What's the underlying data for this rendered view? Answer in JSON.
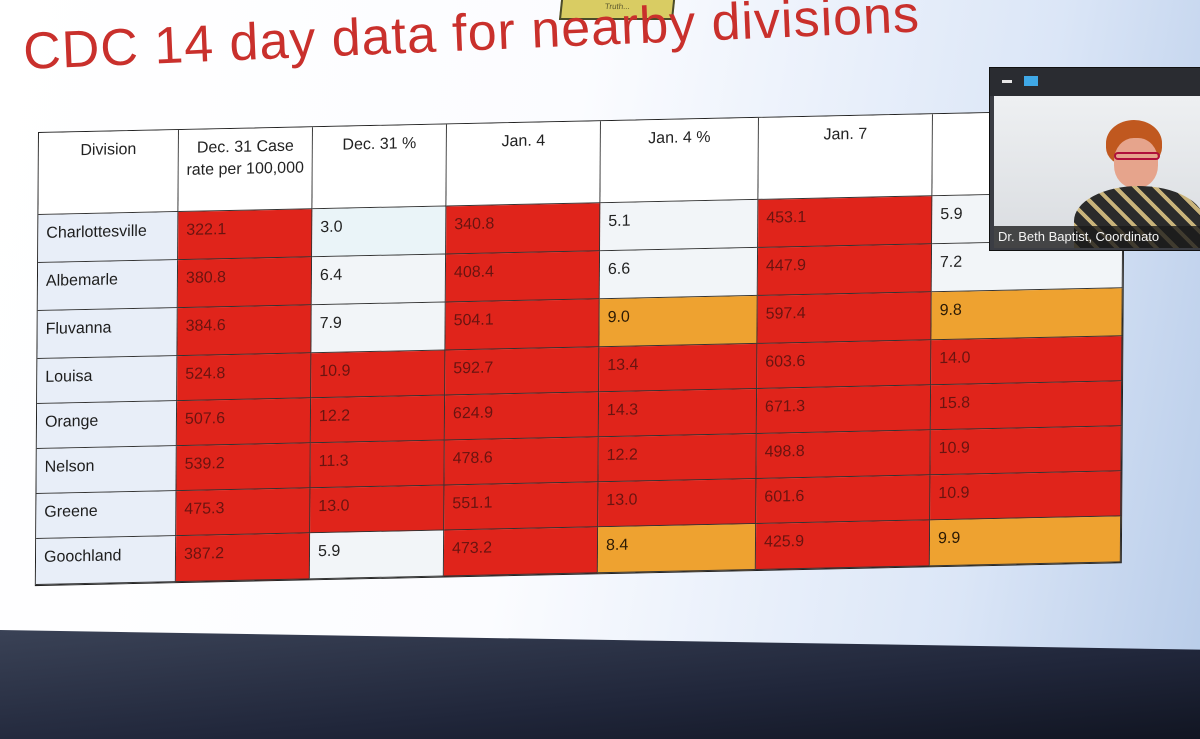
{
  "slide": {
    "title": "CDC 14 day data for nearby divisions",
    "banner_text": "Truth..."
  },
  "table": {
    "headers": [
      "Division",
      "Dec. 31 Case rate per 100,000",
      "Dec. 31 %",
      "Jan. 4",
      "Jan. 4 %",
      "Jan. 7",
      ""
    ],
    "rows": [
      {
        "division": "Charlottesville",
        "values": [
          "322.1",
          "3.0",
          "340.8",
          "5.1",
          "453.1",
          "5.9"
        ],
        "colors": [
          "red",
          "cyanwhite",
          "red",
          "white",
          "red",
          "white"
        ]
      },
      {
        "division": "Albemarle",
        "values": [
          "380.8",
          "6.4",
          "408.4",
          "6.6",
          "447.9",
          "7.2"
        ],
        "colors": [
          "red",
          "white",
          "red",
          "white",
          "red",
          "white"
        ]
      },
      {
        "division": "Fluvanna",
        "values": [
          "384.6",
          "7.9",
          "504.1",
          "9.0",
          "597.4",
          "9.8"
        ],
        "colors": [
          "red",
          "white",
          "red",
          "orange",
          "red",
          "orange"
        ]
      },
      {
        "division": "Louisa",
        "values": [
          "524.8",
          "10.9",
          "592.7",
          "13.4",
          "603.6",
          "14.0"
        ],
        "colors": [
          "red",
          "red",
          "red",
          "red",
          "red",
          "red"
        ]
      },
      {
        "division": "Orange",
        "values": [
          "507.6",
          "12.2",
          "624.9",
          "14.3",
          "671.3",
          "15.8"
        ],
        "colors": [
          "red",
          "red",
          "red",
          "red",
          "red",
          "red"
        ]
      },
      {
        "division": "Nelson",
        "values": [
          "539.2",
          "11.3",
          "478.6",
          "12.2",
          "498.8",
          "10.9"
        ],
        "colors": [
          "red",
          "red",
          "red",
          "red",
          "red",
          "red"
        ]
      },
      {
        "division": "Greene",
        "values": [
          "475.3",
          "13.0",
          "551.1",
          "13.0",
          "601.6",
          "10.9"
        ],
        "colors": [
          "red",
          "red",
          "red",
          "red",
          "red",
          "red"
        ]
      },
      {
        "division": "Goochland",
        "values": [
          "387.2",
          "5.9",
          "473.2",
          "8.4",
          "425.9",
          "9.9"
        ],
        "colors": [
          "red",
          "white",
          "red",
          "orange",
          "red",
          "orange"
        ]
      }
    ]
  },
  "video": {
    "participant_name": "Dr. Beth Baptist, Coordinato"
  },
  "colors": {
    "red": "#e0241b",
    "orange": "#eea230",
    "white": "#f2f5f8",
    "title": "#c9302c"
  }
}
